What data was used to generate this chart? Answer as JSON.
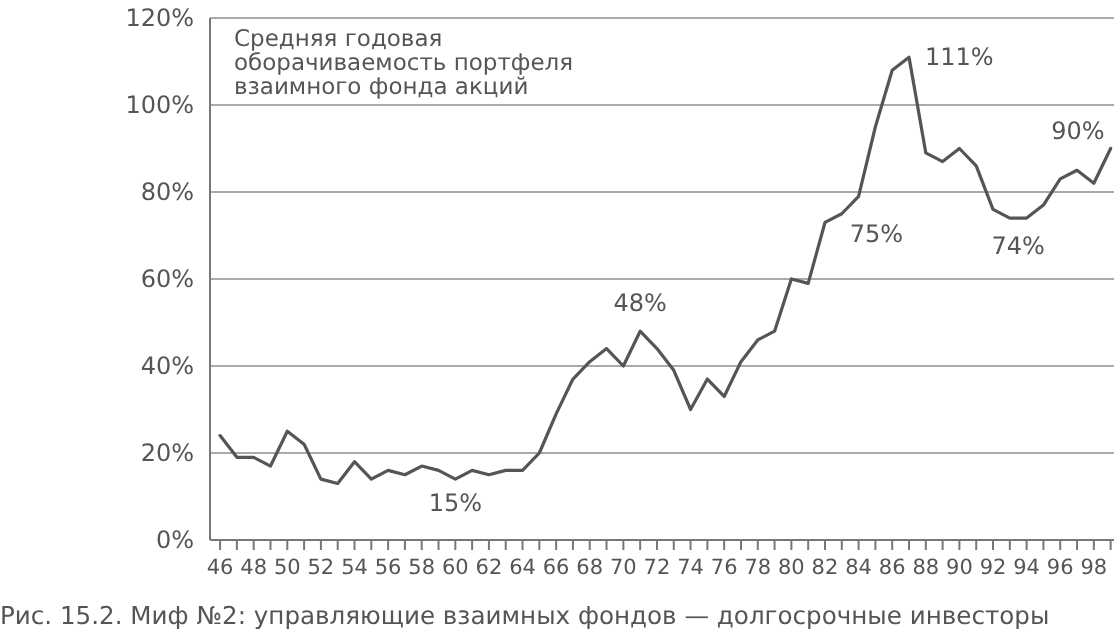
{
  "chart_data": {
    "type": "line",
    "title": "Средняя годовая оборачиваемость портфеля взаимного фонда акций",
    "x": [
      46,
      47,
      48,
      49,
      50,
      51,
      52,
      53,
      54,
      55,
      56,
      57,
      58,
      59,
      60,
      61,
      62,
      63,
      64,
      65,
      66,
      67,
      68,
      69,
      70,
      71,
      72,
      73,
      74,
      75,
      76,
      77,
      78,
      79,
      80,
      81,
      82,
      83,
      84,
      85,
      86,
      87,
      88,
      89,
      90,
      91,
      92,
      93,
      94,
      95,
      96,
      97,
      98,
      99
    ],
    "series": [
      {
        "color": "#555555",
        "values": [
          24,
          19,
          19,
          17,
          25,
          22,
          14,
          13,
          18,
          14,
          16,
          15,
          17,
          16,
          14,
          16,
          15,
          16,
          16,
          20,
          29,
          37,
          41,
          44,
          40,
          48,
          44,
          39,
          30,
          37,
          33,
          41,
          46,
          48,
          60,
          59,
          73,
          75,
          79,
          95,
          108,
          111,
          89,
          87,
          90,
          86,
          76,
          74,
          74,
          77,
          83,
          85,
          82,
          90
        ]
      }
    ],
    "xlim": [
      45.4,
      99.2
    ],
    "xticks": [
      46,
      {
        "value": 47,
        "label": null
      },
      48,
      {
        "value": 49,
        "label": null
      },
      50,
      {
        "value": 51,
        "label": null
      },
      52,
      {
        "value": 53,
        "label": null
      },
      54,
      {
        "value": 55,
        "label": null
      },
      56,
      {
        "value": 57,
        "label": null
      },
      58,
      {
        "value": 59,
        "label": null
      },
      60,
      {
        "value": 61,
        "label": null
      },
      62,
      {
        "value": 63,
        "label": null
      },
      64,
      {
        "value": 65,
        "label": null
      },
      66,
      {
        "value": 67,
        "label": null
      },
      68,
      {
        "value": 69,
        "label": null
      },
      70,
      {
        "value": 71,
        "label": null
      },
      72,
      {
        "value": 73,
        "label": null
      },
      74,
      {
        "value": 75,
        "label": null
      },
      76,
      {
        "value": 77,
        "label": null
      },
      78,
      {
        "value": 79,
        "label": null
      },
      80,
      {
        "value": 81,
        "label": null
      },
      82,
      {
        "value": 83,
        "label": null
      },
      84,
      {
        "value": 85,
        "label": null
      },
      86,
      {
        "value": 87,
        "label": null
      },
      88,
      {
        "value": 89,
        "label": null
      },
      90,
      {
        "value": 91,
        "label": null
      },
      92,
      {
        "value": 93,
        "label": null
      },
      94,
      {
        "value": 95,
        "label": null
      },
      96,
      {
        "value": 97,
        "label": null
      },
      98,
      {
        "value": 99,
        "label": null
      }
    ],
    "ylim": [
      0,
      120
    ],
    "yticks": [
      {
        "value": 0,
        "label": "0%"
      },
      {
        "value": 20,
        "label": "20%"
      },
      {
        "value": 40,
        "label": "40%"
      },
      {
        "value": 60,
        "label": "60%"
      },
      {
        "value": 80,
        "label": "80%"
      },
      {
        "value": 100,
        "label": "100%"
      },
      {
        "value": 120,
        "label": "120%"
      }
    ],
    "grid": "y",
    "marker": "none",
    "line_style": "solid",
    "annotations": [
      {
        "text": "15%",
        "x": 60,
        "y": 14
      },
      {
        "text": "48%",
        "x": 71,
        "y": 48
      },
      {
        "text": "75%",
        "x": 83,
        "y": 75
      },
      {
        "text": "111%",
        "x": 87,
        "y": 111
      },
      {
        "text": "74%",
        "x": 93.5,
        "y": 74
      },
      {
        "text": "90%",
        "x": 98,
        "y": 82
      },
      "Рис. 15.2. Миф №2: управляющие взаимных фондов — долгосрочные инвесторы"
    ]
  }
}
